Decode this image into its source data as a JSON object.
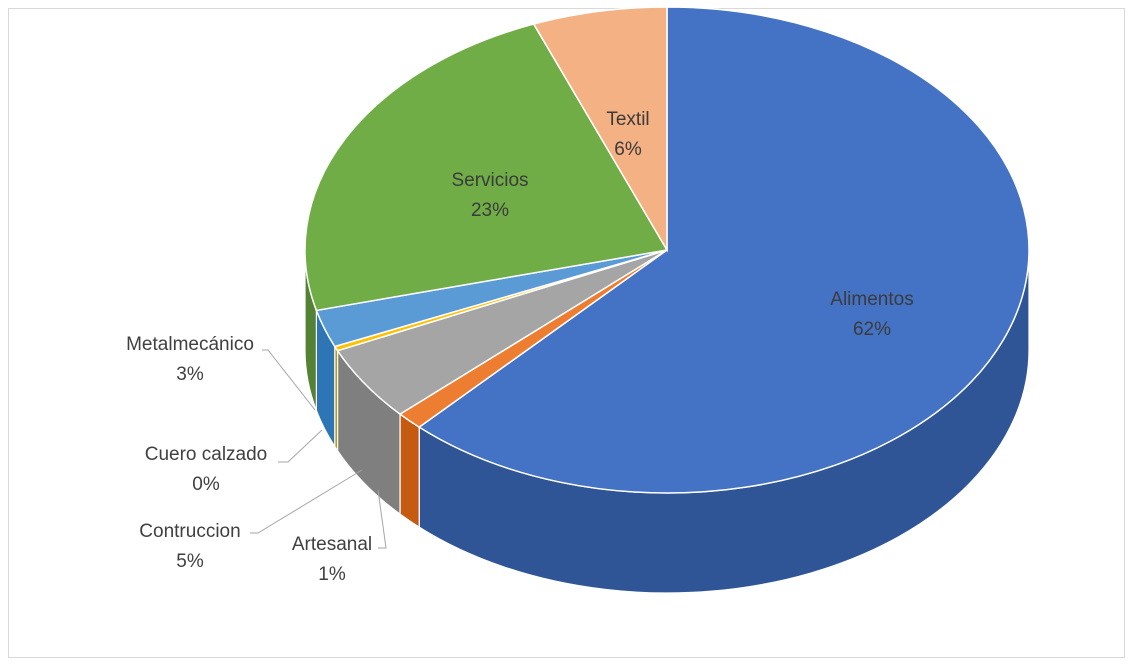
{
  "chart_data": {
    "type": "pie",
    "title": "",
    "slices": [
      {
        "name": "Alimentos",
        "label_name": "Alimentos",
        "label_value": "62%",
        "value": 62,
        "color": "#4472c4",
        "side_color": "#2f5597"
      },
      {
        "name": "Artesanal",
        "label_name": "Artesanal",
        "label_value": "1%",
        "value": 1.2,
        "color": "#ed7d31",
        "side_color": "#c55a11"
      },
      {
        "name": "Contruccion",
        "label_name": "Contruccion",
        "label_value": "5%",
        "value": 5,
        "color": "#a5a5a5",
        "side_color": "#7f7f7f"
      },
      {
        "name": "Cuero calzado",
        "label_name": "Cuero calzado",
        "label_value": "0%",
        "value": 0.3,
        "color": "#ffc000",
        "side_color": "#bf9000"
      },
      {
        "name": "Metalmecánico",
        "label_name": "Metalmecánico",
        "label_value": "3%",
        "value": 2.5,
        "color": "#5b9bd5",
        "side_color": "#2e75b6"
      },
      {
        "name": "Servicios",
        "label_name": "Servicios",
        "label_value": "23%",
        "value": 23,
        "color": "#70ad47",
        "side_color": "#548235"
      },
      {
        "name": "Textil",
        "label_name": "Textil",
        "label_value": "6%",
        "value": 6,
        "color": "#f4b183",
        "side_color": "#c9845a"
      }
    ],
    "style": "3d",
    "legend": "none",
    "data_labels": "category name and percentage"
  }
}
